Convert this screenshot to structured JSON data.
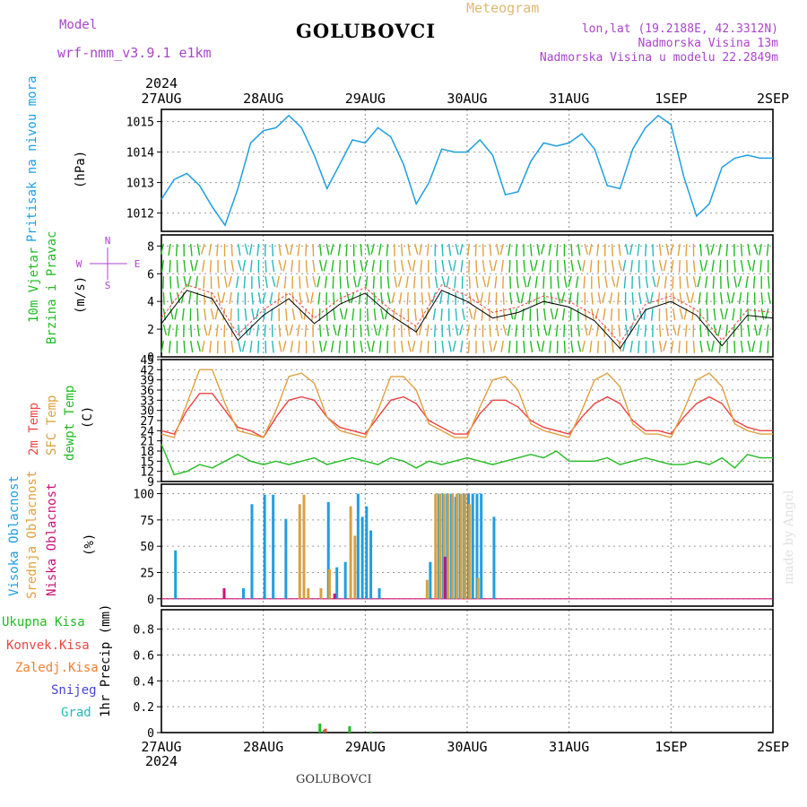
{
  "header": {
    "model_label": "Model",
    "model_name": "wrf-nmm_v3.9.1 e1km",
    "station": "GOLUBOVCI",
    "meteogram": "Meteogram",
    "lonlat": "lon,lat (19.2188E, 42.3312N)",
    "altitude": "Nadmorska Visina 13m",
    "model_altitude": "Nadmorska Visina u modelu 22.2849m",
    "year": "2024",
    "footer_station": "GOLUBOVCI",
    "watermark": "made by Angel"
  },
  "colors": {
    "pressure": "#1e9fe0",
    "temp2m": "#ee4444",
    "sfc_temp": "#e0a040",
    "dewpoint": "#22bb22",
    "high_cloud": "#1e9fe0",
    "mid_cloud": "#d8a040",
    "low_cloud": "#cc1177",
    "total_precip": "#22bb22",
    "conv_precip": "#ee4444",
    "frozen_precip": "#f08030",
    "snow": "#4444dd",
    "hail": "#22bbbb",
    "wind_label": "#22bb22",
    "compass": "#aa44cc"
  },
  "x_axis": {
    "labels": [
      "27AUG",
      "28AUG",
      "29AUG",
      "30AUG",
      "31AUG",
      "1SEP",
      "2SEP"
    ]
  },
  "panels": {
    "pressure": {
      "label1": "Pritisak na nivou mora",
      "unit": "(hPa)",
      "ticks": [
        "1012",
        "1013",
        "1014",
        "1015"
      ]
    },
    "wind": {
      "label1": "10m Vjetar",
      "label2": "Brzina i Pravac",
      "unit": "(m/s)",
      "ticks": [
        "0",
        "2",
        "4",
        "6",
        "8"
      ],
      "compass": {
        "n": "N",
        "s": "S",
        "e": "E",
        "w": "W"
      }
    },
    "temp": {
      "label1": "2m Temp",
      "label2": "SFC Temp",
      "label3": "dewpt Temp",
      "unit": "(C)",
      "ticks": [
        "9",
        "12",
        "15",
        "18",
        "21",
        "24",
        "27",
        "30",
        "33",
        "36",
        "39",
        "42",
        "45"
      ]
    },
    "cloud": {
      "label1": "Visoka Oblacnost",
      "label2": "Srednja Oblacnost",
      "label3": "Niska Oblacnost",
      "unit": "(%)",
      "ticks": [
        "0",
        "25",
        "50",
        "75",
        "100"
      ]
    },
    "precip": {
      "legend": [
        "Ukupna Kisa",
        "Konvek.Kisa",
        "Zaledj.Kisa",
        "Snijeg",
        "Grad"
      ],
      "unit": "1hr Precip (mm)",
      "ticks": [
        "0",
        "0.2",
        "0.4",
        "0.6",
        "0.8"
      ]
    }
  },
  "chart_data": [
    {
      "type": "line",
      "xlabel": "",
      "ylabel": "Pritisak na nivou mora (hPa)",
      "ylim": [
        1011.4,
        1015.4
      ],
      "x_unit": "hours from 27AUG 00",
      "series": [
        {
          "name": "Pritisak na nivou mora",
          "x": [
            0,
            3,
            6,
            9,
            12,
            15,
            18,
            21,
            24,
            27,
            30,
            33,
            36,
            39,
            42,
            45,
            48,
            51,
            54,
            57,
            60,
            63,
            66,
            69,
            72,
            75,
            78,
            81,
            84,
            87,
            90,
            93,
            96,
            99,
            102,
            105,
            108,
            111,
            114,
            117,
            120,
            123,
            126,
            129,
            132,
            135,
            138,
            141,
            144
          ],
          "values": [
            1012.45,
            1013.1,
            1013.3,
            1012.9,
            1012.2,
            1011.6,
            1012.8,
            1014.3,
            1014.7,
            1014.8,
            1015.2,
            1014.8,
            1013.9,
            1012.8,
            1013.6,
            1014.4,
            1014.3,
            1014.8,
            1014.5,
            1013.6,
            1012.3,
            1013.0,
            1014.1,
            1014.0,
            1014.0,
            1014.4,
            1013.9,
            1012.6,
            1012.7,
            1013.7,
            1014.3,
            1014.2,
            1014.3,
            1014.6,
            1014.1,
            1012.9,
            1012.8,
            1014.1,
            1014.8,
            1015.2,
            1014.9,
            1013.2,
            1011.9,
            1012.3,
            1013.5,
            1013.8,
            1013.9,
            1013.8,
            1013.8
          ]
        }
      ]
    },
    {
      "type": "line",
      "xlabel": "",
      "ylabel": "10m Vjetar Brzina i Pravac (m/s)",
      "ylim": [
        0,
        8.8
      ],
      "series": [
        {
          "name": "10m Vjetar",
          "x": [
            0,
            6,
            12,
            18,
            24,
            30,
            36,
            42,
            48,
            54,
            60,
            66,
            72,
            78,
            84,
            90,
            96,
            102,
            108,
            114,
            120,
            126,
            132,
            138,
            144
          ],
          "values": [
            2.4,
            4.8,
            4.2,
            1.2,
            3.0,
            4.2,
            2.4,
            3.8,
            4.6,
            3.0,
            1.8,
            4.8,
            4.0,
            2.8,
            3.2,
            4.0,
            3.6,
            2.6,
            0.6,
            3.4,
            4.0,
            3.0,
            0.8,
            3.0,
            2.8
          ]
        }
      ]
    },
    {
      "type": "line",
      "xlabel": "",
      "ylabel": "Temp (C)",
      "ylim": [
        9,
        45
      ],
      "series": [
        {
          "name": "2m Temp",
          "x": [
            0,
            3,
            6,
            9,
            12,
            15,
            18,
            21,
            24,
            27,
            30,
            33,
            36,
            39,
            42,
            45,
            48,
            51,
            54,
            57,
            60,
            63,
            66,
            69,
            72,
            75,
            78,
            81,
            84,
            87,
            90,
            93,
            96,
            99,
            102,
            105,
            108,
            111,
            114,
            117,
            120,
            123,
            126,
            129,
            132,
            135,
            138,
            141,
            144
          ],
          "values": [
            24,
            23,
            30,
            35,
            35,
            30,
            25,
            24,
            22,
            28,
            33,
            34,
            33,
            28,
            25,
            24,
            23,
            28,
            33,
            34,
            32,
            27,
            25,
            23,
            23,
            29,
            33,
            33,
            31,
            27,
            25,
            24,
            23,
            28,
            32,
            34,
            32,
            27,
            24,
            24,
            23,
            28,
            32,
            34,
            32,
            27,
            25,
            24,
            24
          ]
        },
        {
          "name": "SFC Temp",
          "x": [
            0,
            3,
            6,
            9,
            12,
            15,
            18,
            21,
            24,
            27,
            30,
            33,
            36,
            39,
            42,
            45,
            48,
            51,
            54,
            57,
            60,
            63,
            66,
            69,
            72,
            75,
            78,
            81,
            84,
            87,
            90,
            93,
            96,
            99,
            102,
            105,
            108,
            111,
            114,
            117,
            120,
            123,
            126,
            129,
            132,
            135,
            138,
            141,
            144
          ],
          "values": [
            23,
            22,
            32,
            42,
            42,
            32,
            24,
            23,
            22,
            30,
            40,
            41,
            38,
            28,
            24,
            23,
            22,
            30,
            40,
            40,
            36,
            26,
            24,
            22,
            22,
            31,
            39,
            40,
            36,
            26,
            24,
            23,
            22,
            30,
            39,
            41,
            37,
            26,
            23,
            23,
            22,
            30,
            39,
            41,
            37,
            26,
            24,
            23,
            23
          ]
        },
        {
          "name": "dewpt Temp",
          "x": [
            0,
            3,
            6,
            9,
            12,
            15,
            18,
            21,
            24,
            27,
            30,
            33,
            36,
            39,
            42,
            45,
            48,
            51,
            54,
            57,
            60,
            63,
            66,
            69,
            72,
            75,
            78,
            81,
            84,
            87,
            90,
            93,
            96,
            99,
            102,
            105,
            108,
            111,
            114,
            117,
            120,
            123,
            126,
            129,
            132,
            135,
            138,
            141,
            144
          ],
          "values": [
            20,
            11,
            12,
            14,
            13,
            15,
            17,
            15,
            14,
            15,
            14,
            15,
            16,
            14,
            15,
            16,
            15,
            14,
            16,
            15,
            13,
            15,
            14,
            15,
            16,
            15,
            14,
            15,
            16,
            17,
            16,
            18,
            15,
            15,
            15,
            16,
            14,
            15,
            16,
            15,
            14,
            14,
            15,
            14,
            16,
            13,
            17,
            16,
            16
          ]
        }
      ]
    },
    {
      "type": "bar",
      "xlabel": "",
      "ylabel": "Oblacnost (%)",
      "ylim": [
        0,
        100
      ],
      "series": [
        {
          "name": "Visoka Oblacnost",
          "x": [
            3,
            19,
            21,
            24,
            26,
            29,
            39,
            41,
            43,
            46,
            47,
            48,
            49,
            51,
            63,
            65,
            66,
            67,
            68,
            69,
            70,
            71,
            72,
            73,
            74,
            75,
            78
          ],
          "values": [
            46,
            10,
            90,
            99,
            99,
            76,
            92,
            30,
            35,
            100,
            78,
            88,
            65,
            10,
            35,
            100,
            100,
            100,
            100,
            97,
            100,
            100,
            100,
            100,
            100,
            100,
            78
          ]
        },
        {
          "name": "Srednja Oblacnost",
          "x": [
            32,
            33,
            34,
            37,
            39,
            44,
            45,
            62,
            64,
            65,
            66,
            67,
            68,
            69,
            70,
            71,
            72,
            74
          ],
          "values": [
            90,
            99,
            10,
            10,
            28,
            88,
            60,
            18,
            100,
            100,
            100,
            100,
            100,
            100,
            100,
            100,
            90,
            20
          ]
        },
        {
          "name": "Niska Oblacnost",
          "x": [
            14,
            40,
            66
          ],
          "values": [
            10,
            5,
            40
          ]
        }
      ]
    },
    {
      "type": "bar",
      "xlabel": "",
      "ylabel": "1hr Precip (mm)",
      "ylim": [
        0,
        0.95
      ],
      "series": [
        {
          "name": "Ukupna Kisa",
          "x": [
            37,
            38,
            44,
            49
          ],
          "values": [
            0.07,
            0.02,
            0.05,
            0.01
          ]
        },
        {
          "name": "Konvek.Kisa",
          "x": [
            38
          ],
          "values": [
            0.03
          ]
        }
      ]
    }
  ]
}
